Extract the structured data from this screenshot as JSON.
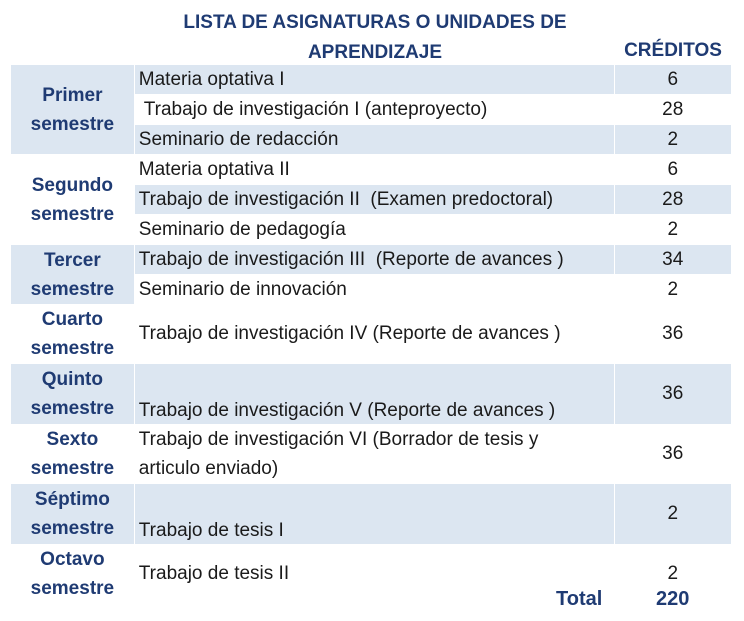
{
  "header": {
    "title_line1": "LISTA DE ASIGNATURAS O UNIDADES DE",
    "title_line2": "APRENDIZAJE",
    "credits": "CRÉDITOS"
  },
  "rows": [
    {
      "semester": [
        "Primer",
        "semestre"
      ],
      "subjects": [
        {
          "name": "Materia optativa I",
          "credits": "6"
        },
        {
          "name": " Trabajo de investigación I (anteproyecto)",
          "credits": "28"
        },
        {
          "name": "Seminario de redacción",
          "credits": "2"
        }
      ]
    },
    {
      "semester": [
        "Segundo",
        "semestre"
      ],
      "subjects": [
        {
          "name": "Materia optativa II",
          "credits": "6"
        },
        {
          "name": "Trabajo de investigación II  (Examen predoctoral)",
          "credits": "28"
        },
        {
          "name": "Seminario de pedagogía",
          "credits": "2"
        }
      ]
    },
    {
      "semester": [
        "Tercer",
        "semestre"
      ],
      "subjects": [
        {
          "name": "Trabajo de investigación III  (Reporte de avances )",
          "credits": "34"
        },
        {
          "name": "Seminario de innovación",
          "credits": "2"
        }
      ]
    },
    {
      "semester": [
        "Cuarto",
        "semestre"
      ],
      "subjects": [
        {
          "name": "Trabajo de investigación IV (Reporte de avances )",
          "credits": "36"
        }
      ]
    },
    {
      "semester": [
        "Quinto",
        "semestre"
      ],
      "subjects": [
        {
          "name": "Trabajo de investigación V (Reporte de avances )",
          "credits": "36"
        }
      ]
    },
    {
      "semester": [
        "Sexto",
        "semestre"
      ],
      "subjects": [
        {
          "name_line1": "Trabajo de investigación VI (Borrador de tesis y",
          "name_line2": "articulo enviado)",
          "credits": "36"
        }
      ]
    },
    {
      "semester": [
        "Séptimo",
        "semestre"
      ],
      "subjects": [
        {
          "name": "Trabajo de tesis I",
          "credits": "2"
        }
      ]
    },
    {
      "semester": [
        "Octavo",
        "semestre"
      ],
      "subjects": [
        {
          "name": "Trabajo de tesis II",
          "credits": "2"
        }
      ]
    }
  ],
  "total": {
    "label": "Total",
    "value": "220"
  }
}
